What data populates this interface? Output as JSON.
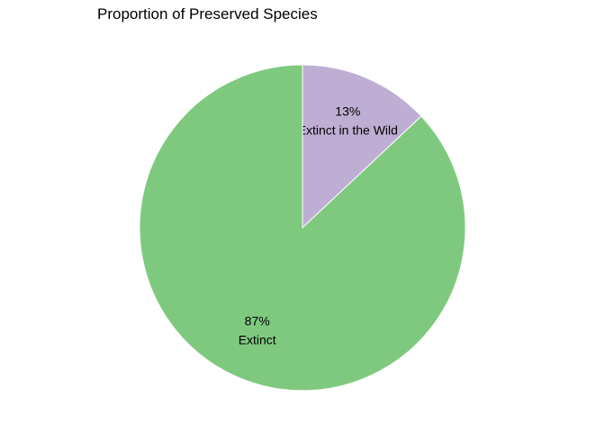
{
  "chart_data": {
    "type": "pie",
    "title": "Proportion of Preserved Species",
    "slices": [
      {
        "label": "Extinct in the Wild",
        "percent_label": "13%",
        "value": 13,
        "color": "#beaed4"
      },
      {
        "label": "Extinct",
        "percent_label": "87%",
        "value": 87,
        "color": "#7fc97f"
      }
    ],
    "start_angle": "12 o'clock",
    "direction": "clockwise",
    "legend": "none"
  }
}
